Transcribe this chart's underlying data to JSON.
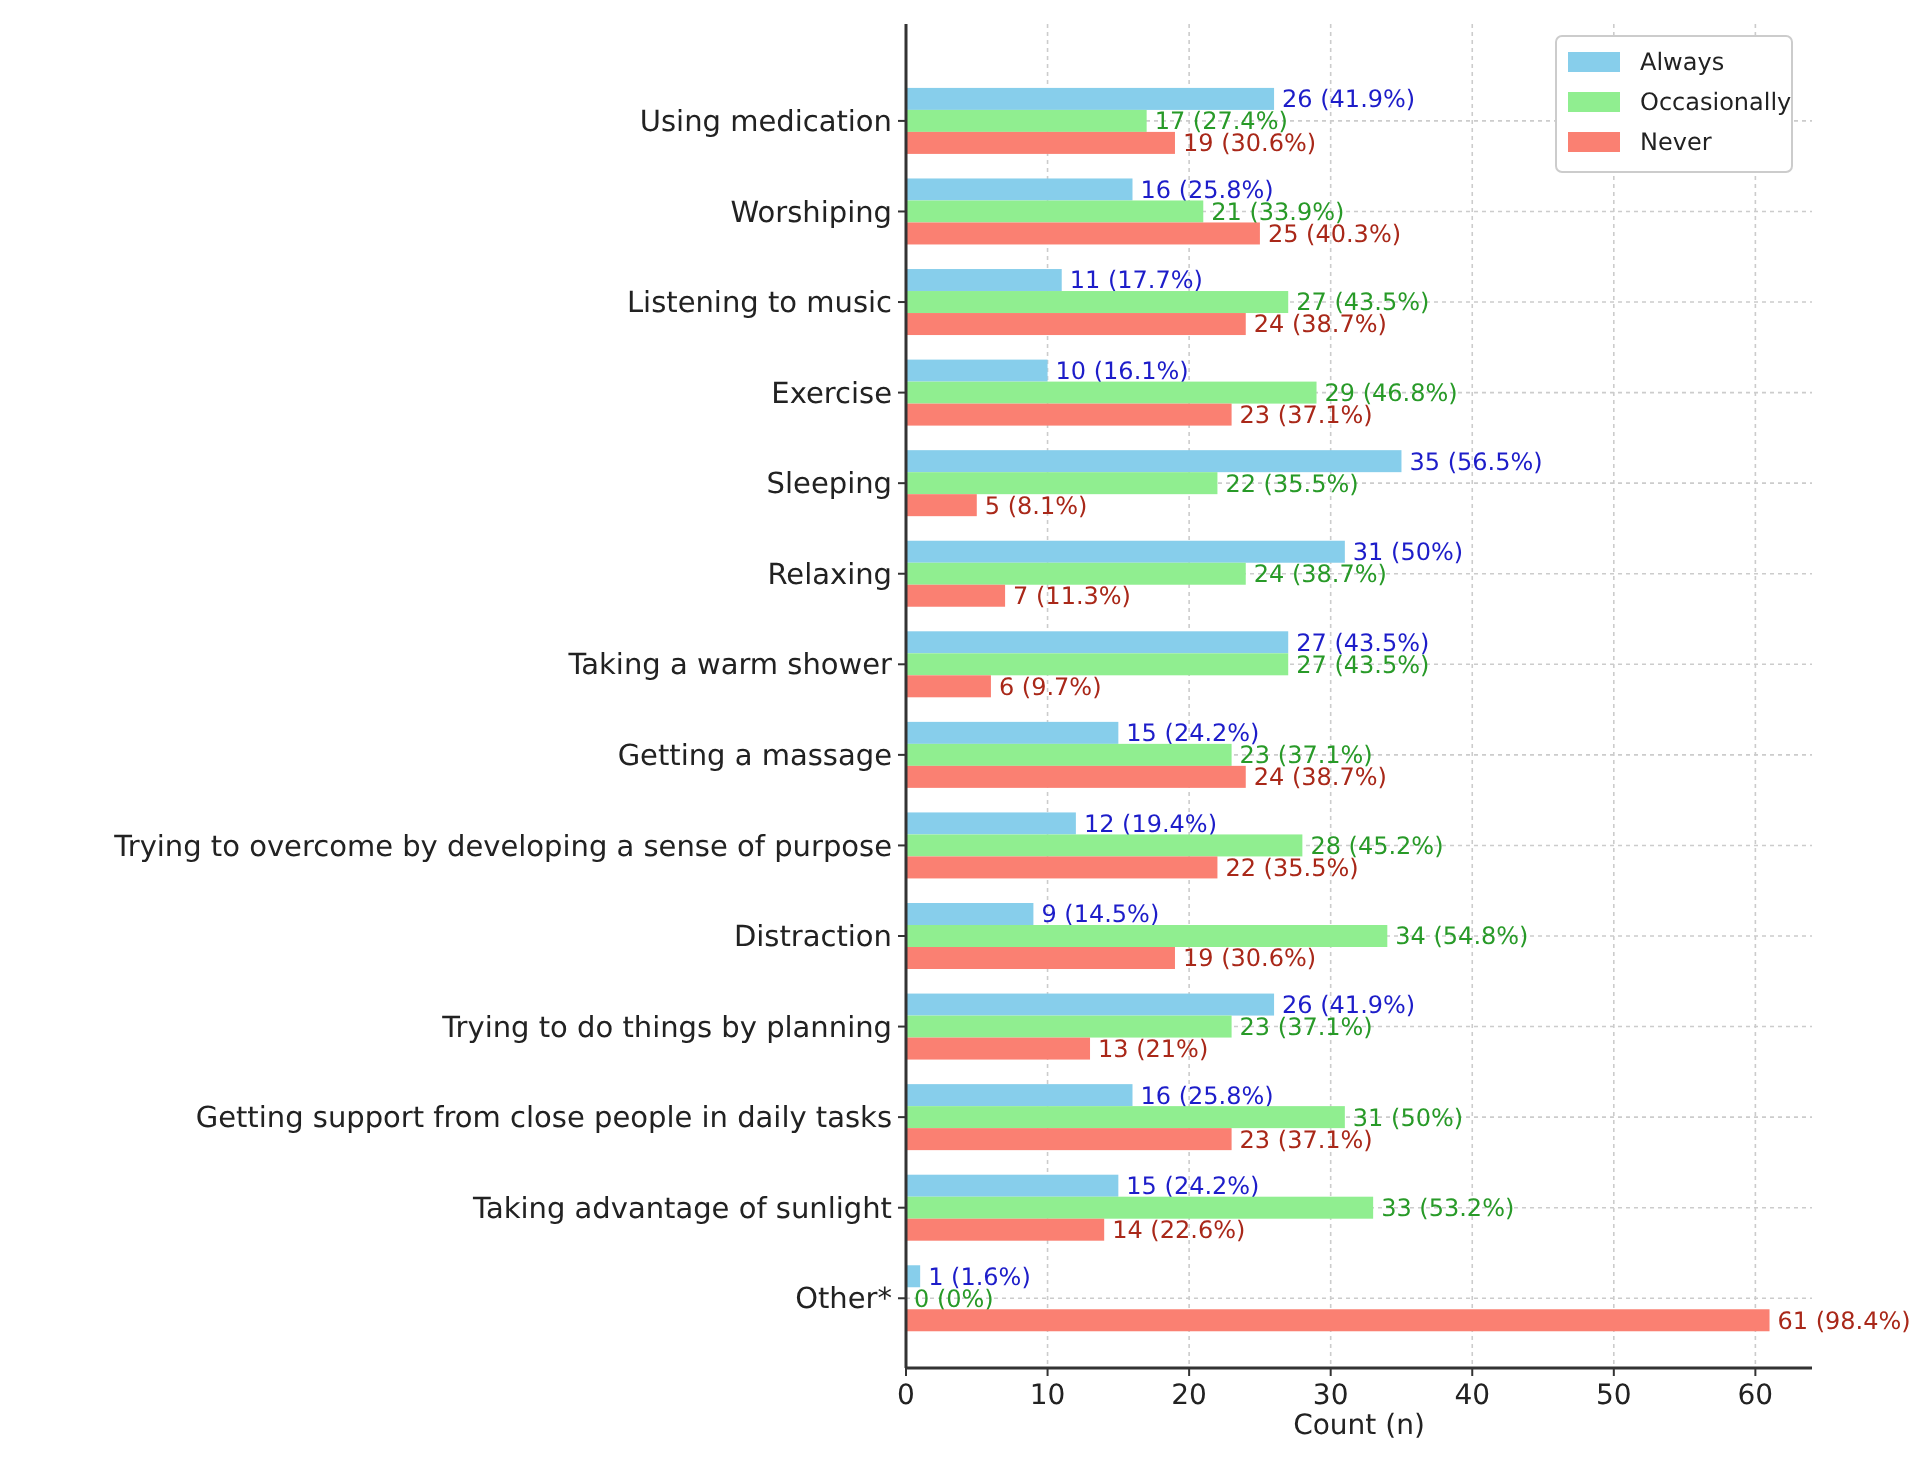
{
  "chart_data": {
    "type": "bar",
    "orientation": "horizontal",
    "xlabel": "Count (n)",
    "categories": [
      "Using medication",
      "Worshiping",
      "Listening to music",
      "Exercise",
      "Sleeping",
      "Relaxing",
      "Taking a warm shower",
      "Getting a massage",
      "Trying to overcome by developing a sense of purpose",
      "Distraction",
      "Trying to do things by planning",
      "Getting support from close people in daily tasks",
      "Taking advantage of sunlight",
      "Other*"
    ],
    "series": [
      {
        "name": "Always",
        "color": "#87ceeb",
        "values": [
          26,
          16,
          11,
          10,
          35,
          31,
          27,
          15,
          12,
          9,
          26,
          16,
          15,
          1
        ],
        "value_labels": [
          "26 (41.9%)",
          "16 (25.8%)",
          "11 (17.7%)",
          "10 (16.1%)",
          "35 (56.5%)",
          "31 (50%)",
          "27 (43.5%)",
          "15 (24.2%)",
          "12 (19.4%)",
          "9 (14.5%)",
          "26 (41.9%)",
          "16 (25.8%)",
          "15 (24.2%)",
          "1 (1.6%)"
        ]
      },
      {
        "name": "Occasionally",
        "color": "#90ee90",
        "values": [
          17,
          21,
          27,
          29,
          22,
          24,
          27,
          23,
          28,
          34,
          23,
          31,
          33,
          0
        ],
        "value_labels": [
          "17 (27.4%)",
          "21 (33.9%)",
          "27 (43.5%)",
          "29 (46.8%)",
          "22 (35.5%)",
          "24 (38.7%)",
          "27 (43.5%)",
          "23 (37.1%)",
          "28 (45.2%)",
          "34 (54.8%)",
          "23 (37.1%)",
          "31 (50%)",
          "33 (53.2%)",
          "0 (0%)"
        ]
      },
      {
        "name": "Never",
        "color": "#fa8072",
        "values": [
          19,
          25,
          24,
          23,
          5,
          7,
          6,
          24,
          22,
          19,
          13,
          23,
          14,
          61
        ],
        "value_labels": [
          "19 (30.6%)",
          "25 (40.3%)",
          "24 (38.7%)",
          "23 (37.1%)",
          "5 (8.1%)",
          "7 (11.3%)",
          "6 (9.7%)",
          "24 (38.7%)",
          "22 (35.5%)",
          "19 (30.6%)",
          "13 (21%)",
          "23 (37.1%)",
          "14 (22.6%)",
          "61 (98.4%)"
        ]
      }
    ],
    "xlim": [
      0,
      64
    ],
    "xticks": [
      0,
      10,
      20,
      30,
      40,
      50,
      60
    ],
    "grid": true,
    "legend": "top right"
  }
}
